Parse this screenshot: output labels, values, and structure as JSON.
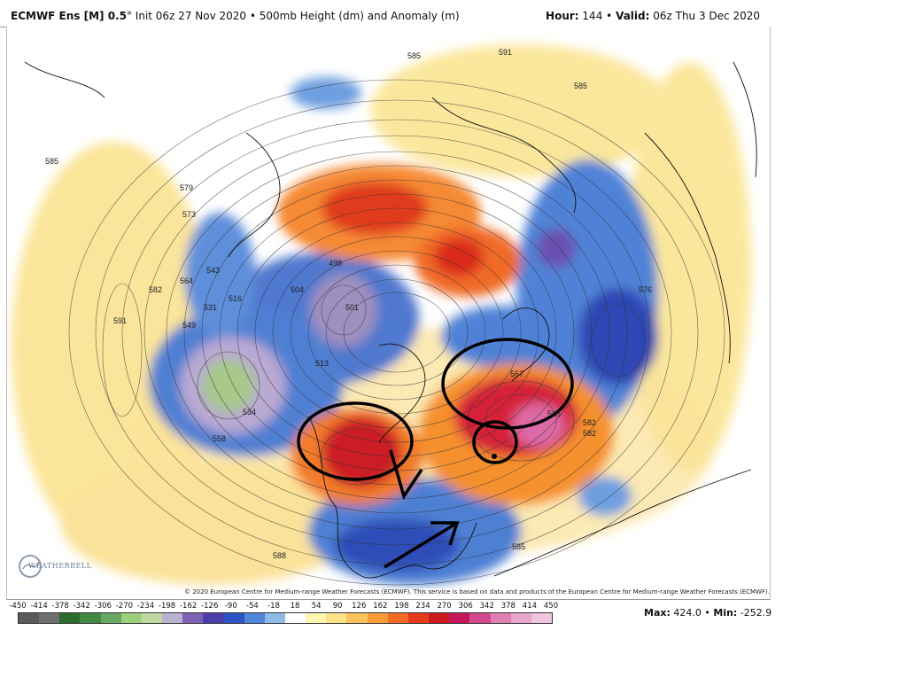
{
  "header": {
    "model": "ECMWF Ens [M] 0.5",
    "degree": "°",
    "init": "Init 06z 27 Nov 2020",
    "bullet": "•",
    "field": "500mb Height (dm) and Anomaly (m)",
    "hour_label": "Hour:",
    "hour": "144",
    "valid_label": "Valid:",
    "valid": "06z Thu 3 Dec 2020"
  },
  "copyright": "© 2020 European Centre for Medium-range Weather Forecasts (ECMWF). This service is based on data and products of the European Centre for Medium-range Weather Forecasts (ECMWF).",
  "logo": {
    "text": "WEATHERBELL",
    "icon": "weatherbell-logo-icon"
  },
  "colorbar": {
    "ticks": [
      "-450",
      "-414",
      "-378",
      "-342",
      "-306",
      "-270",
      "-234",
      "-198",
      "-162",
      "-126",
      "-90",
      "-54",
      "-18",
      "18",
      "54",
      "90",
      "126",
      "162",
      "198",
      "234",
      "270",
      "306",
      "342",
      "378",
      "414",
      "450"
    ],
    "colors": [
      "#5a5a5a",
      "#6f6f6f",
      "#2d6b2d",
      "#3f8a3f",
      "#67a867",
      "#9ccf7b",
      "#c0d9a2",
      "#b9b3cf",
      "#7d62b3",
      "#4a3ea8",
      "#2f55c4",
      "#4e86d8",
      "#8fbbe8",
      "#ffffff",
      "#fff6b0",
      "#fde28a",
      "#fbc35c",
      "#f89c3a",
      "#f26b22",
      "#e53a1c",
      "#cc1a1f",
      "#c2185b",
      "#d54a8f",
      "#e07fb4",
      "#e8a6cc",
      "#efc6de"
    ]
  },
  "stats": {
    "max_label": "Max:",
    "max": "424.0",
    "sep": "•",
    "min_label": "Min:",
    "min": "-252.9"
  },
  "contour_labels": [
    "585",
    "591",
    "585",
    "579",
    "573",
    "582",
    "591",
    "564",
    "549",
    "531",
    "516",
    "504",
    "498",
    "501",
    "513",
    "534",
    "558",
    "582",
    "588",
    "567",
    "585",
    "582",
    "585",
    "576",
    "585",
    "543"
  ]
}
